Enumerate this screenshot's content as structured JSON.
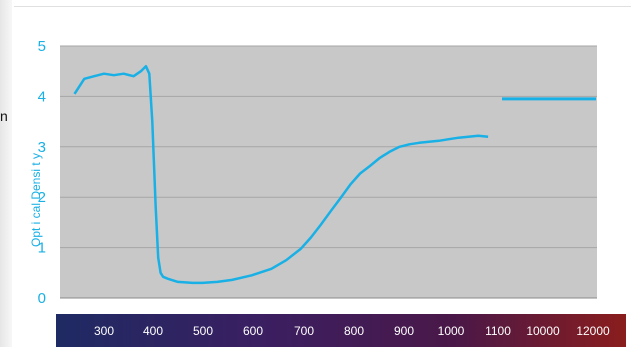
{
  "side_text": "n",
  "chart_data": {
    "type": "line",
    "title": "",
    "ylabel": "Opt i cal  Densi t y",
    "xlabel": "",
    "ylim": [
      0,
      5
    ],
    "yticks": [
      "0",
      "1",
      "2",
      "3",
      "4",
      "5"
    ],
    "xticks": [
      "300",
      "400",
      "500",
      "600",
      "700",
      "800",
      "900",
      "1000",
      "1100",
      "10000",
      "12000"
    ],
    "x_axis_note": "wavelength band with a blue-to-red gradient background",
    "grid": true,
    "line_color": "#19b0e6",
    "series": [
      {
        "x": [
          240,
          260,
          280,
          300,
          320,
          340,
          360,
          375,
          385,
          392,
          398,
          405,
          410,
          415,
          420,
          430,
          450,
          480,
          500,
          530,
          560,
          600,
          640,
          670,
          700,
          720,
          740,
          760,
          780,
          800,
          820,
          840,
          860,
          880,
          900,
          920,
          940,
          960,
          980,
          1000,
          1020,
          1040,
          1060,
          1080
        ],
        "y": [
          4.05,
          4.35,
          4.4,
          4.45,
          4.42,
          4.45,
          4.4,
          4.5,
          4.6,
          4.45,
          3.5,
          1.8,
          0.8,
          0.5,
          0.42,
          0.38,
          0.32,
          0.3,
          0.3,
          0.32,
          0.36,
          0.45,
          0.58,
          0.75,
          0.98,
          1.2,
          1.45,
          1.72,
          1.98,
          2.25,
          2.47,
          2.62,
          2.78,
          2.9,
          3.0,
          3.05,
          3.08,
          3.1,
          3.12,
          3.15,
          3.18,
          3.2,
          3.22,
          3.2
        ]
      },
      {
        "x": [
          10000,
          12000
        ],
        "y": [
          3.95,
          3.95
        ]
      }
    ]
  }
}
